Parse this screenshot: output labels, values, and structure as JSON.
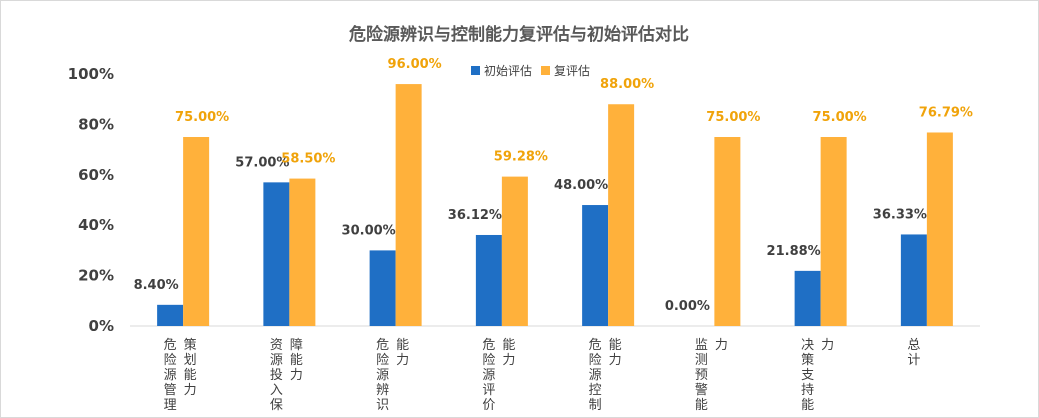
{
  "chart_data": {
    "type": "bar",
    "title": "危险源辨识与控制能力复评估与初始评估对比",
    "categories": [
      [
        "危险源管理",
        "策划能力"
      ],
      [
        "资源投入保",
        "障能力"
      ],
      [
        "危险源辨识",
        "能力"
      ],
      [
        "危险源评价",
        "能力"
      ],
      [
        "危险源控制",
        "能力"
      ],
      [
        "监测预警能",
        "力"
      ],
      [
        "决策支持能",
        "力"
      ],
      [
        "总计",
        ""
      ]
    ],
    "series": [
      {
        "name": "初始评估",
        "color": "#1F6FC5",
        "values": [
          8.4,
          57.0,
          30.0,
          36.12,
          48.0,
          0.0,
          21.88,
          36.33
        ],
        "labels": [
          "8.40%",
          "57.00%",
          "30.00%",
          "36.12%",
          "48.00%",
          "0.00%",
          "21.88%",
          "36.33%"
        ]
      },
      {
        "name": "复评估",
        "color": "#FFB13B",
        "values": [
          75.0,
          58.5,
          96.0,
          59.28,
          88.0,
          75.0,
          75.0,
          76.79
        ],
        "labels": [
          "75.00%",
          "58.50%",
          "96.00%",
          "59.28%",
          "88.00%",
          "75.00%",
          "75.00%",
          "76.79%"
        ]
      }
    ],
    "yticks": [
      "0%",
      "20%",
      "40%",
      "60%",
      "80%",
      "100%"
    ],
    "ylim": [
      0,
      100
    ],
    "grid": false,
    "legend_position": "top"
  }
}
